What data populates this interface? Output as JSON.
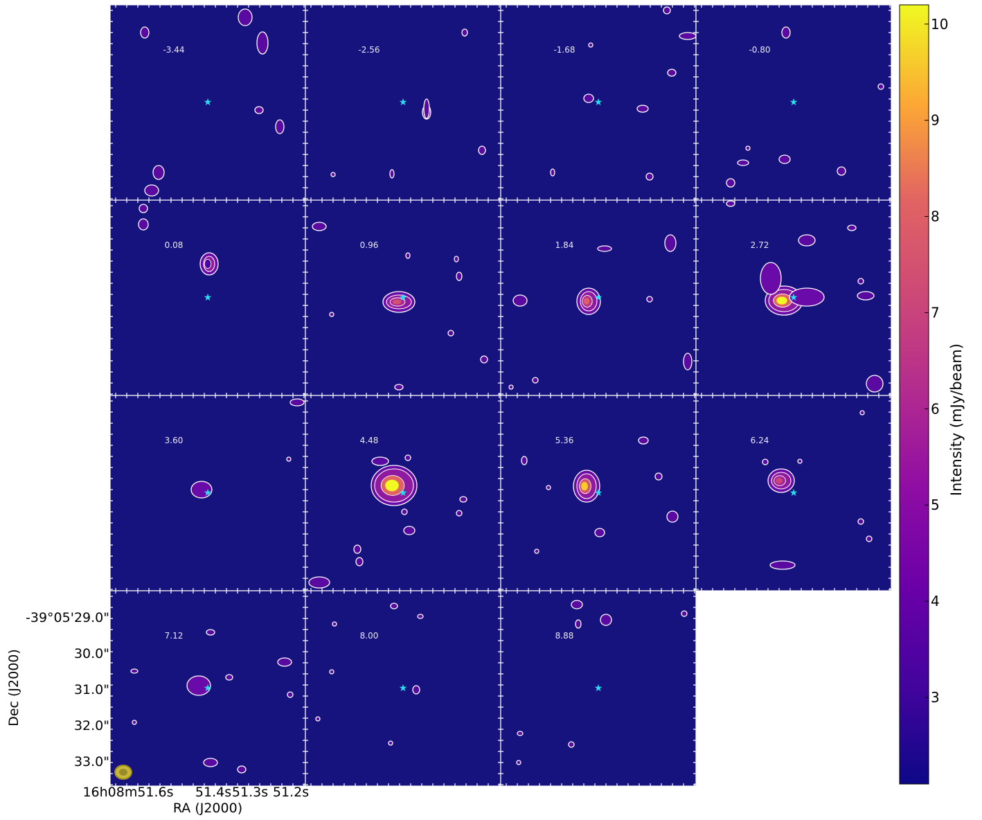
{
  "chart_data": {
    "type": "heatmap",
    "subtype": "channel-map",
    "panel_labels": [
      "-3.44",
      "-2.56",
      "-1.68",
      "-0.80",
      "0.08",
      "0.96",
      "1.84",
      "2.72",
      "3.60",
      "4.48",
      "5.36",
      "6.24",
      "7.12",
      "8.00",
      "8.88"
    ],
    "emission_peak_mjy_per_beam": [
      0,
      0,
      0,
      0,
      3.8,
      7.5,
      8.0,
      10.2,
      0,
      10.2,
      9.6,
      7.2,
      0,
      0,
      0
    ],
    "xlabel": "RA (J2000)",
    "ylabel": "Dec (J2000)",
    "xticks": [
      "16h08m51.6s",
      "51.4s",
      "51.3s",
      "51.2s"
    ],
    "yticks": [
      "-39°05'29.0\"",
      "30.0\"",
      "31.0\"",
      "32.0\"",
      "33.0\""
    ],
    "colorbar": {
      "label": "Intensity (mJy/beam)",
      "ticks": [
        "10",
        "9",
        "8",
        "7",
        "6",
        "5",
        "4",
        "3"
      ],
      "tick_values": [
        10,
        9,
        8,
        7,
        6,
        5,
        4,
        3
      ],
      "range": [
        2.1,
        10.2
      ],
      "colormap": "plasma"
    },
    "star_marker_color": "#28e0f0",
    "contour_color": "#ffffff",
    "background_color": "#16127e",
    "beam_color": "#c8b83a",
    "grid": false
  }
}
